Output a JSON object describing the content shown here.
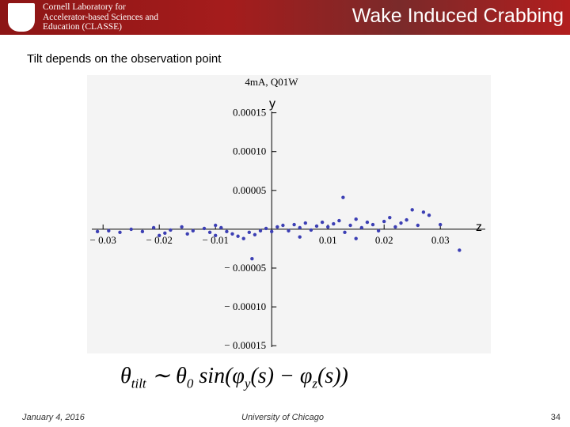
{
  "header": {
    "logo_text": [
      "Cornell Laboratory for",
      "Accelerator-based Sciences and",
      "Education (CLASSE)"
    ],
    "title": "Wake Induced Crabbing"
  },
  "subtitle": "Tilt depends on the observation point",
  "chart_data": {
    "type": "scatter",
    "title": "4mA, Q01W",
    "x_label": "z",
    "y_label": "y",
    "color": "#3c3fb4",
    "xlim": [
      -0.032,
      0.038
    ],
    "ylim": [
      -0.00016,
      0.00017
    ],
    "xticks": [
      {
        "value": -0.03,
        "label": "− 0.03"
      },
      {
        "value": -0.02,
        "label": "− 0.02"
      },
      {
        "value": -0.01,
        "label": "− 0.01"
      },
      {
        "value": 0.01,
        "label": "0.01"
      },
      {
        "value": 0.02,
        "label": "0.02"
      },
      {
        "value": 0.03,
        "label": "0.03"
      }
    ],
    "yticks": [
      {
        "value": 0.00015,
        "label": "0.00015"
      },
      {
        "value": 0.0001,
        "label": "0.00010"
      },
      {
        "value": 5e-05,
        "label": "0.00005"
      },
      {
        "value": -5e-05,
        "label": "− 0.00005"
      },
      {
        "value": -0.0001,
        "label": "− 0.00010"
      },
      {
        "value": -0.00015,
        "label": "− 0.00015"
      }
    ],
    "x": [
      -0.031,
      -0.029,
      -0.027,
      -0.025,
      -0.023,
      -0.021,
      -0.019,
      -0.018,
      -0.016,
      -0.015,
      -0.014,
      -0.012,
      -0.011,
      -0.01,
      -0.009,
      -0.008,
      -0.007,
      -0.006,
      -0.005,
      -0.004,
      -0.003,
      -0.002,
      -0.001,
      0.0,
      0.001,
      0.002,
      0.003,
      0.004,
      0.005,
      0.006,
      0.007,
      0.008,
      0.009,
      0.01,
      0.011,
      0.012,
      0.013,
      0.014,
      0.015,
      0.016,
      0.017,
      0.018,
      0.019,
      0.02,
      0.021,
      0.022,
      0.023,
      0.024,
      0.026,
      0.028,
      0.03,
      -0.0035,
      0.0127,
      0.025,
      0.0334,
      -0.02,
      -0.01,
      0.005,
      0.015,
      0.027
    ],
    "y": [
      -3e-06,
      -2e-06,
      -4e-06,
      0,
      -3e-06,
      2e-06,
      -5e-06,
      -1e-06,
      3e-06,
      -6e-06,
      -2e-06,
      1e-06,
      -4e-06,
      -8e-06,
      2e-06,
      -3e-06,
      -6e-06,
      -9e-06,
      -1.2e-05,
      -4e-06,
      -7e-06,
      -2e-06,
      1e-06,
      -3e-06,
      3e-06,
      5e-06,
      -2e-06,
      6e-06,
      2e-06,
      8e-06,
      -1e-06,
      4e-06,
      9e-06,
      3e-06,
      7e-06,
      1.1e-05,
      -4e-06,
      5e-06,
      1.3e-05,
      2e-06,
      9e-06,
      6e-06,
      -2e-06,
      1e-05,
      1.5e-05,
      3e-06,
      8e-06,
      1.2e-05,
      5e-06,
      1.8e-05,
      6e-06,
      -3.8e-05,
      4.1e-05,
      2.5e-05,
      -2.7e-05,
      -8e-06,
      5e-06,
      -1e-05,
      -1.2e-05,
      2.2e-05
    ]
  },
  "formula": [
    "θ",
    "tilt",
    " ∼ θ",
    "0",
    " sin(φ",
    "y",
    "(s) − φ",
    "z",
    "(s))"
  ],
  "footer": {
    "date": "January 4, 2016",
    "org": "University of Chicago",
    "page": "34"
  }
}
